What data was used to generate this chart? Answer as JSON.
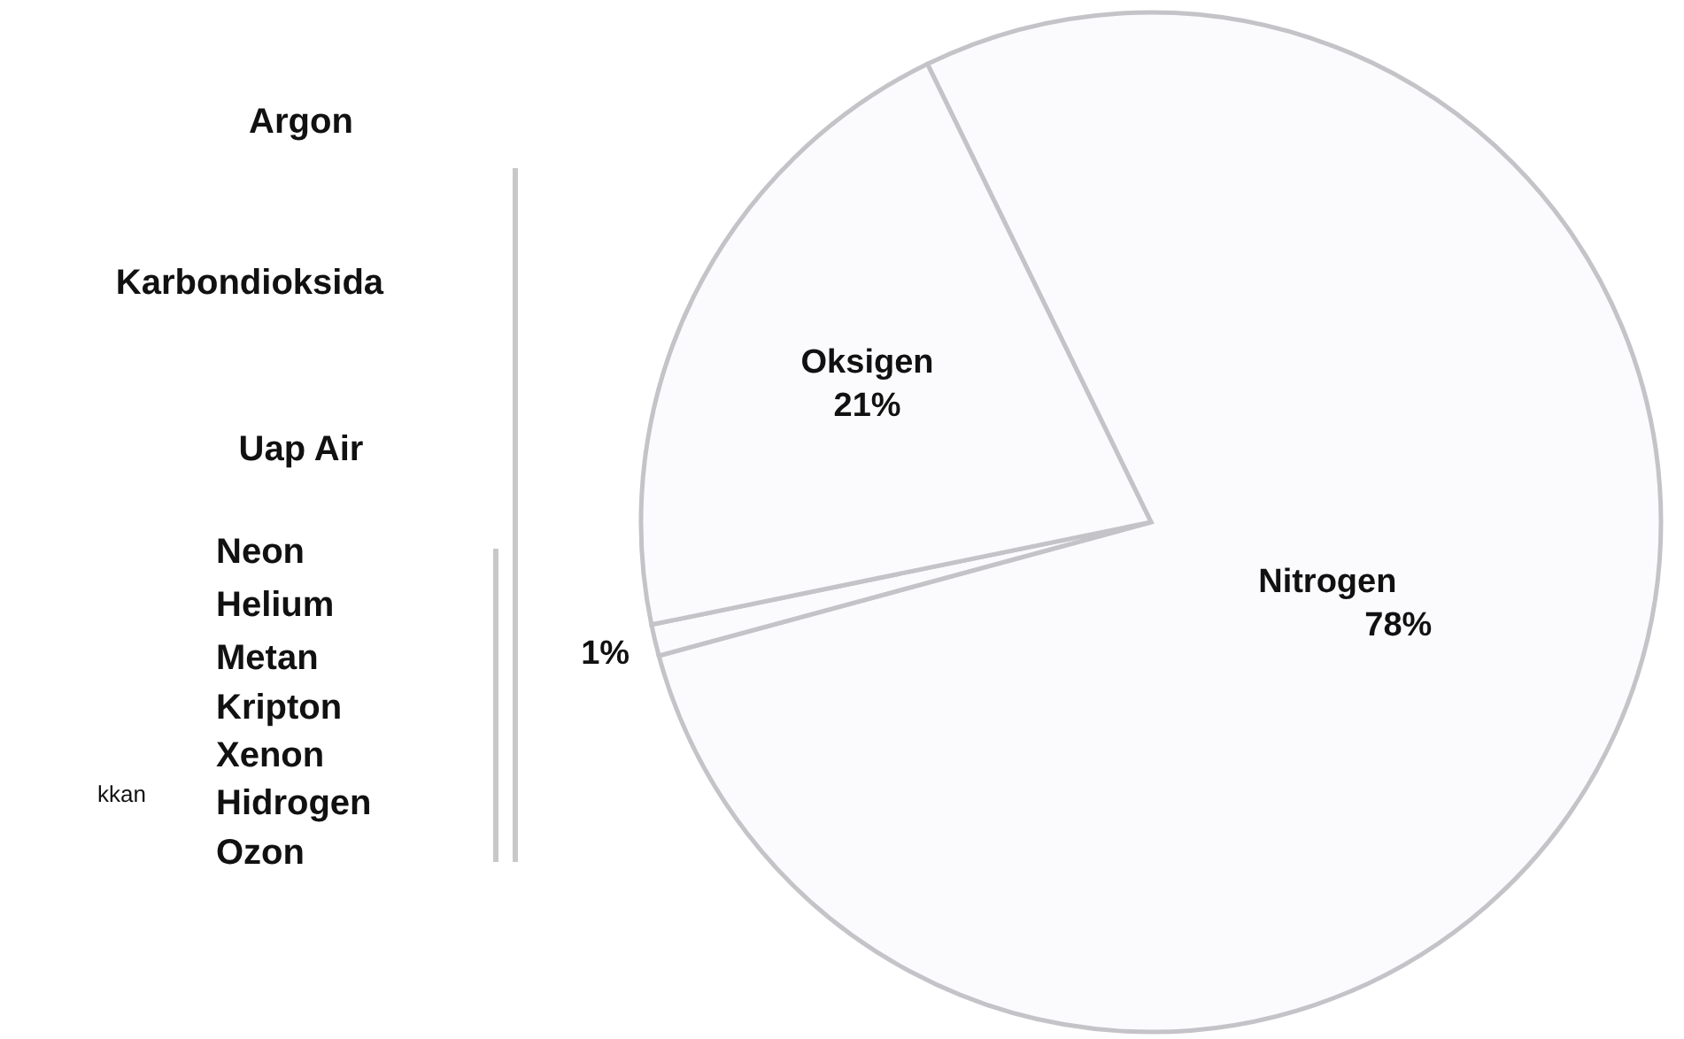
{
  "chart_data": {
    "type": "pie",
    "categories": [
      "Nitrogen",
      null,
      "Oksigen"
    ],
    "values": [
      78,
      1,
      21
    ],
    "value_labels": [
      "78%",
      "1%",
      "21%"
    ],
    "colors": [
      "#fbfbfd",
      "#fbfbfd",
      "#fbfbfd"
    ],
    "annotations": [
      "Argon",
      "Karbondioksida",
      "Uap Air",
      "Neon",
      "Helium",
      "Metan",
      "Kripton",
      "Xenon",
      "Hidrogen",
      "Ozon",
      "kkan"
    ]
  }
}
